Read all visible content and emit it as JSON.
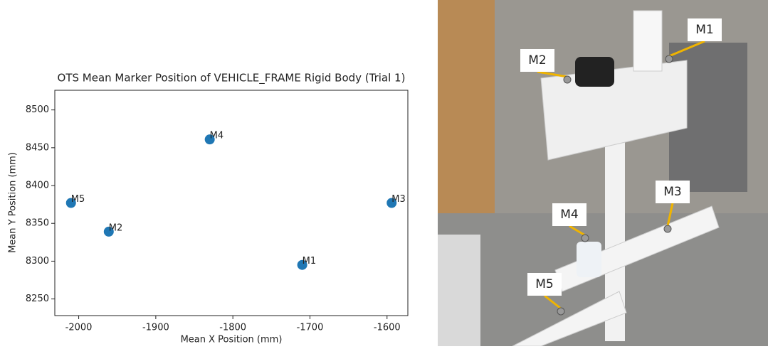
{
  "chart_data": {
    "type": "scatter",
    "title": "OTS Mean Marker Position of VEHICLE_FRAME Rigid Body (Trial 1)",
    "x_label": "Mean X Position (mm)",
    "y_label": "Mean Y Position (mm)",
    "labels": [
      "M1",
      "M2",
      "M3",
      "M4",
      "M5"
    ],
    "x": [
      -1710,
      -1961,
      -1594,
      -1830,
      -2010
    ],
    "values": [
      8295,
      8339,
      8377,
      8461,
      8377
    ],
    "color": "#1f77b4",
    "xlim": [
      -2031,
      -1573
    ],
    "xticks": [
      -2000,
      -1900,
      -1800,
      -1700,
      -1600
    ],
    "ylim": [
      8228,
      8526
    ],
    "yticks": [
      8250,
      8300,
      8350,
      8400,
      8450,
      8500
    ]
  },
  "photo": {
    "labels": [
      "M1",
      "M2",
      "M3",
      "M4",
      "M5"
    ]
  }
}
